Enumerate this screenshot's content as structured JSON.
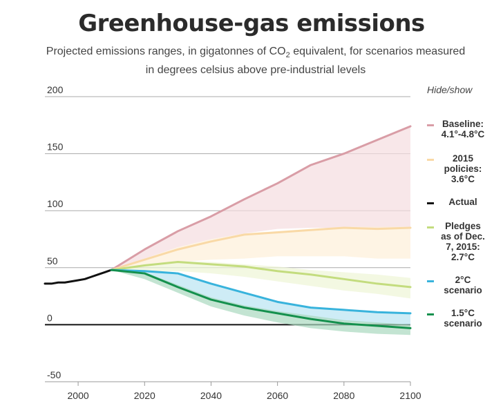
{
  "title": "Greenhouse-gas emissions",
  "subtitle_pre": "Projected emissions ranges, in gigatonnes of CO",
  "subtitle_sub": "2",
  "subtitle_post": " equivalent, for scenarios measured in degrees celsius above pre-industrial levels",
  "legend": {
    "hide_show": "Hide/show",
    "items": [
      {
        "label_lines": [
          "Baseline:",
          "4.1°-4.8°C"
        ],
        "color": "#d99da6"
      },
      {
        "label_lines": [
          "2015",
          "policies:",
          "3.6°C"
        ],
        "color": "#f9d9a6"
      },
      {
        "label_lines": [
          "Actual"
        ],
        "color": "#111111"
      },
      {
        "label_lines": [
          "Pledges",
          "as of Dec.",
          "7, 2015:",
          "2.7°C"
        ],
        "color": "#c3dc7e"
      },
      {
        "label_lines": [
          "2°C",
          "scenario"
        ],
        "color": "#38b3dc"
      },
      {
        "label_lines": [
          "1.5°C",
          "scenario"
        ],
        "color": "#14904d"
      }
    ]
  },
  "chart_data": {
    "type": "line",
    "xlim": [
      1990,
      2100
    ],
    "ylim": [
      -50,
      200
    ],
    "x_ticks": [
      "2000",
      "2020",
      "2040",
      "2060",
      "2080",
      "2100"
    ],
    "y_ticks": [
      "200",
      "150",
      "100",
      "50",
      "0",
      "-50"
    ],
    "grid": true,
    "series": [
      {
        "name": "Actual",
        "color": "#111111",
        "x": [
          1990,
          1992,
          1994,
          1996,
          1998,
          2000,
          2002,
          2004,
          2006,
          2008,
          2010
        ],
        "y": [
          36,
          36,
          37,
          37,
          38,
          39,
          40,
          42,
          44,
          46,
          48
        ]
      },
      {
        "name": "Baseline: 4.1°-4.8°C",
        "color": "#d99da6",
        "band_color": "#f5dde0",
        "x": [
          2010,
          2020,
          2030,
          2040,
          2050,
          2060,
          2070,
          2080,
          2090,
          2100
        ],
        "y": [
          48,
          66,
          82,
          95,
          110,
          124,
          140,
          150,
          162,
          174
        ],
        "band_upper": [
          48,
          66,
          82,
          95,
          110,
          124,
          140,
          150,
          162,
          174
        ],
        "band_lower": [
          48,
          58,
          68,
          75,
          80,
          84,
          85,
          85,
          85,
          85
        ]
      },
      {
        "name": "2015 policies: 3.6°C",
        "color": "#f9d9a6",
        "band_color": "#fdf0d8",
        "x": [
          2010,
          2020,
          2030,
          2040,
          2050,
          2060,
          2070,
          2080,
          2090,
          2100
        ],
        "y": [
          48,
          57,
          66,
          73,
          79,
          81,
          83,
          85,
          84,
          85
        ],
        "band_upper": [
          48,
          58,
          68,
          75,
          80,
          82,
          84,
          86,
          86,
          86
        ],
        "band_lower": [
          48,
          52,
          55,
          57,
          58,
          60,
          60,
          60,
          58,
          58
        ]
      },
      {
        "name": "Pledges as of Dec. 7, 2015: 2.7°C",
        "color": "#c3dc7e",
        "band_color": "#eef5d6",
        "x": [
          2010,
          2020,
          2030,
          2040,
          2050,
          2060,
          2070,
          2080,
          2090,
          2100
        ],
        "y": [
          48,
          52,
          55,
          53,
          51,
          47,
          44,
          40,
          36,
          33
        ],
        "band_upper": [
          48,
          53,
          56,
          55,
          53,
          51,
          48,
          46,
          44,
          41
        ],
        "band_lower": [
          48,
          47,
          47,
          45,
          42,
          38,
          34,
          30,
          27,
          23
        ]
      },
      {
        "name": "2°C scenario",
        "color": "#38b3dc",
        "band_color": "#b9e4f2",
        "x": [
          2010,
          2020,
          2030,
          2040,
          2050,
          2060,
          2070,
          2080,
          2090,
          2100
        ],
        "y": [
          48,
          47,
          45,
          36,
          28,
          20,
          15,
          13,
          11,
          10
        ],
        "band_upper": [
          48,
          47,
          45,
          36,
          28,
          20,
          15,
          13,
          11,
          10
        ],
        "band_lower": [
          48,
          44,
          33,
          22,
          15,
          10,
          6,
          3,
          1,
          0
        ]
      },
      {
        "name": "1.5°C scenario",
        "color": "#14904d",
        "band_color": "#a9d9bf",
        "x": [
          2010,
          2020,
          2030,
          2040,
          2050,
          2060,
          2070,
          2080,
          2090,
          2100
        ],
        "y": [
          48,
          45,
          33,
          22,
          15,
          10,
          5,
          1,
          -1,
          -3
        ],
        "band_upper": [
          48,
          46,
          35,
          24,
          17,
          12,
          8,
          4,
          2,
          0
        ],
        "band_lower": [
          48,
          40,
          28,
          16,
          8,
          2,
          -3,
          -6,
          -8,
          -9
        ]
      }
    ]
  }
}
